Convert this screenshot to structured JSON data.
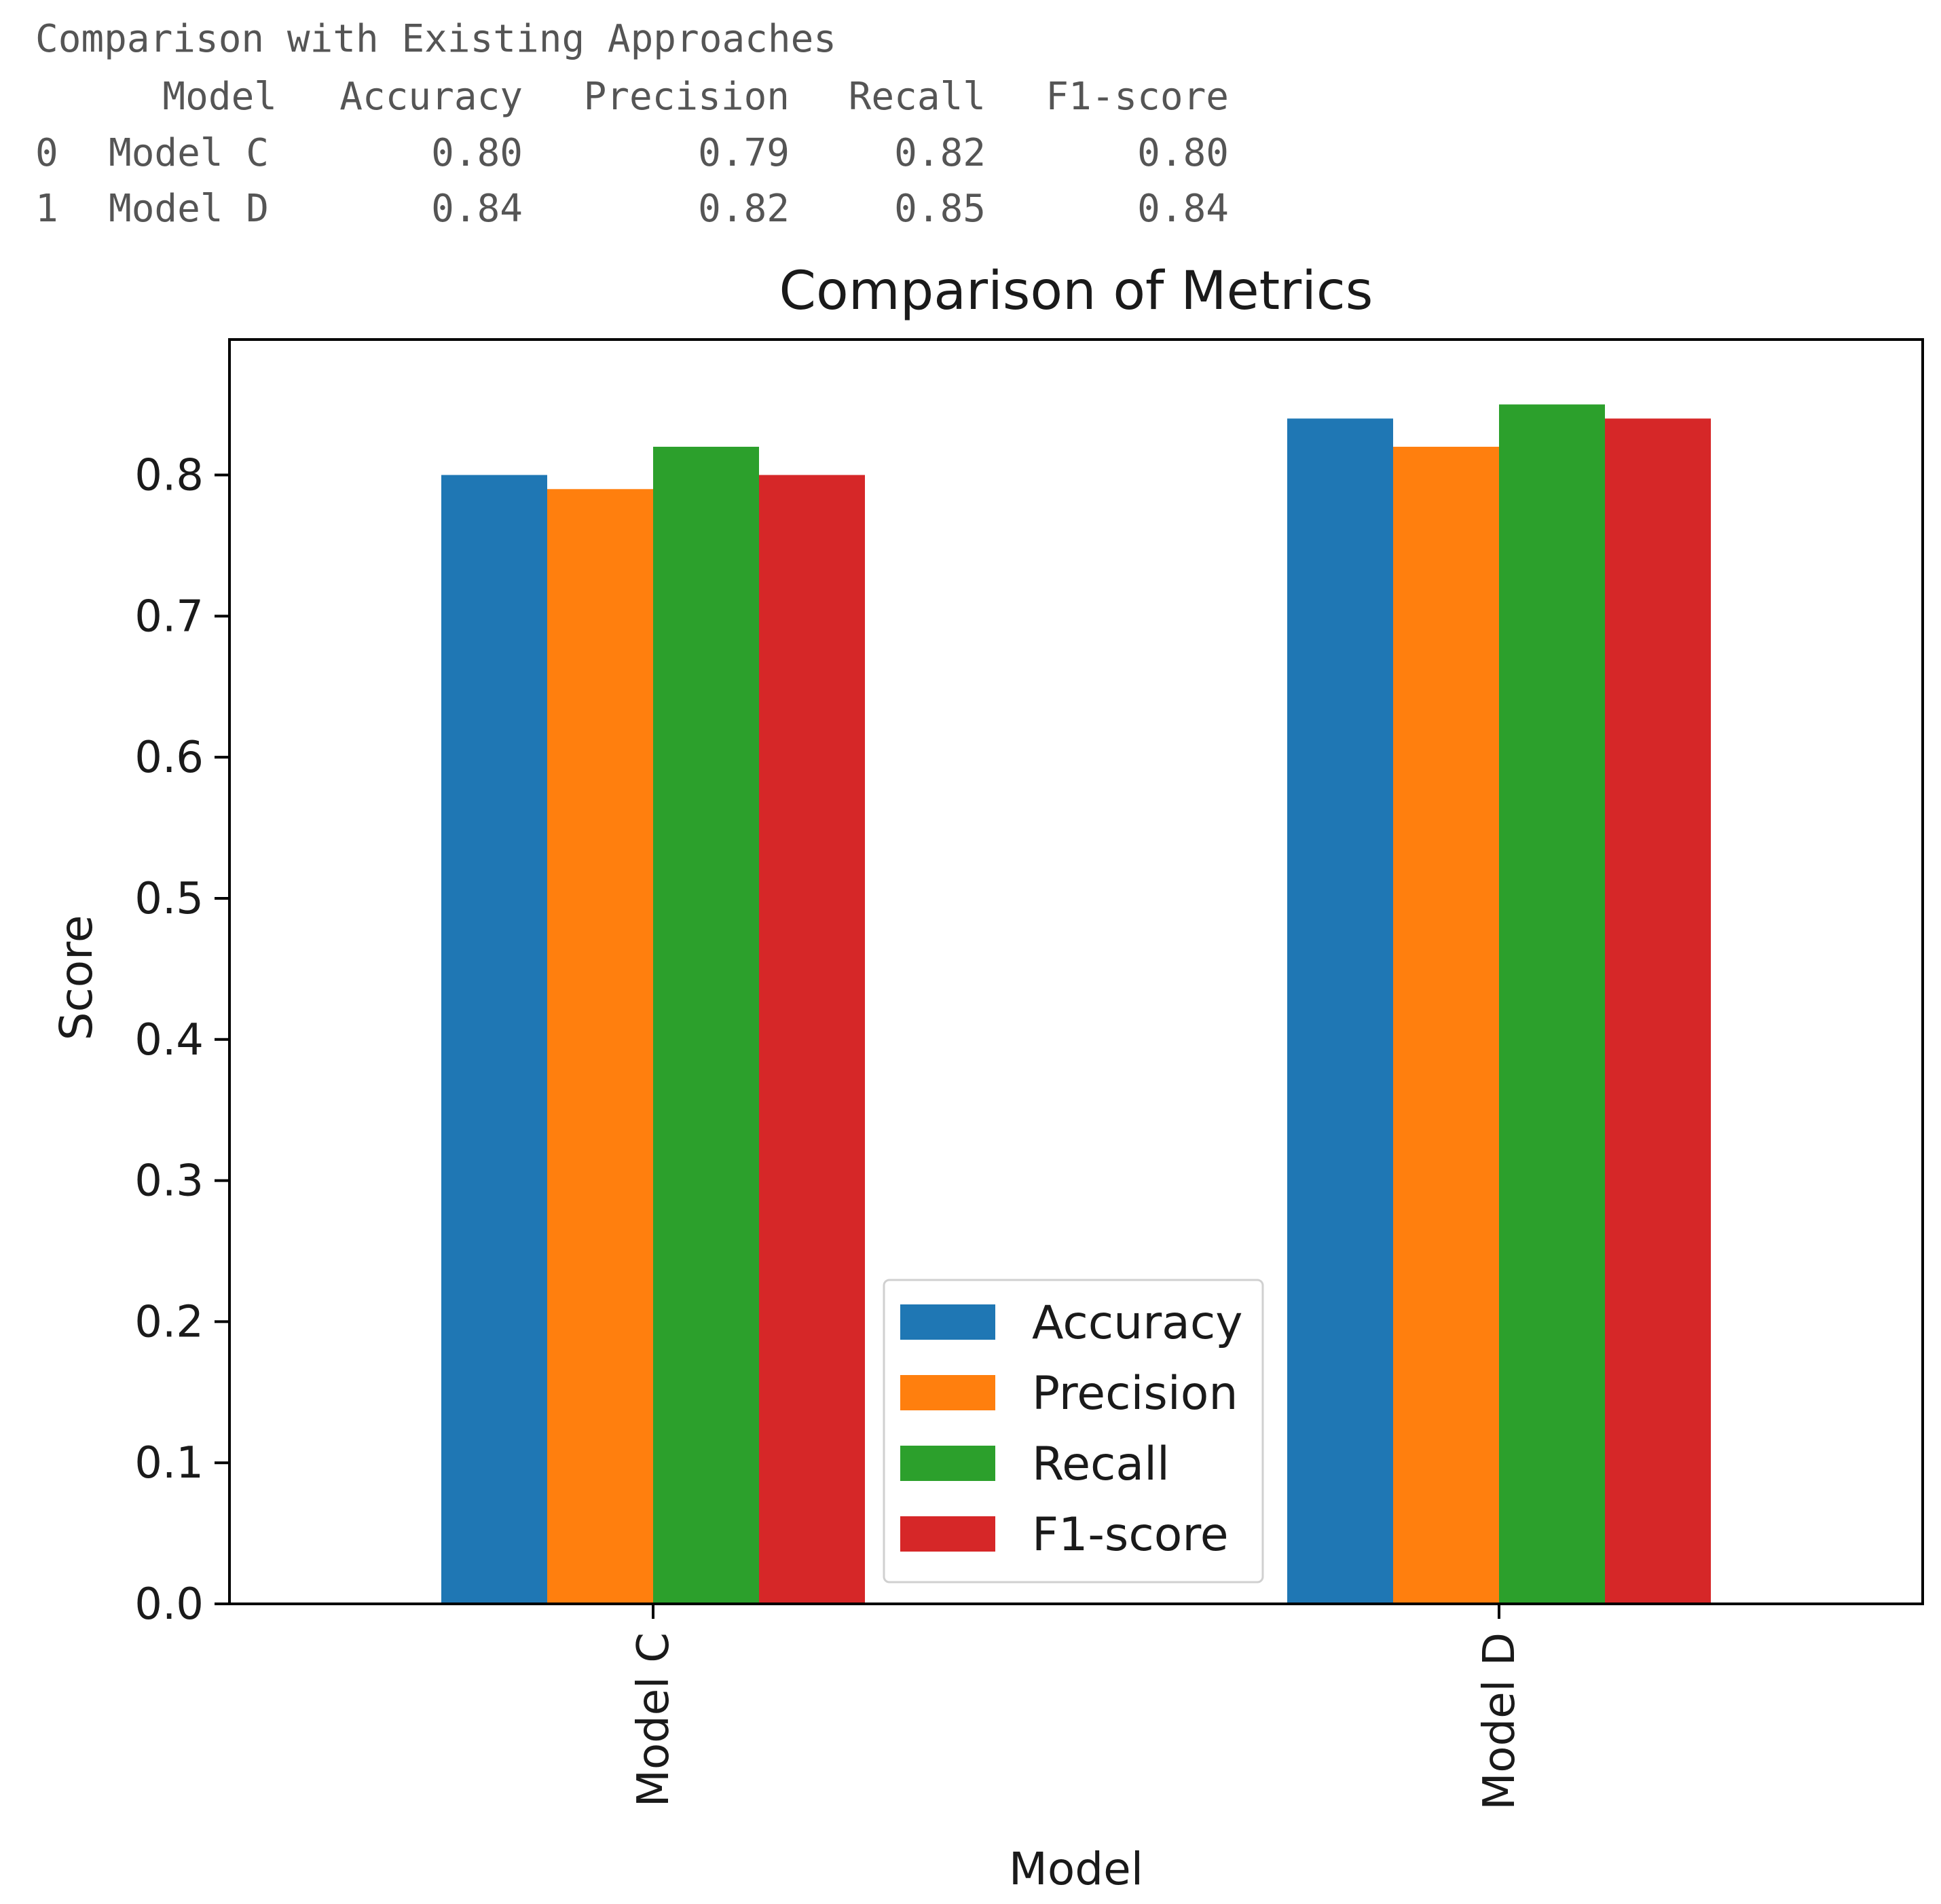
{
  "console": {
    "title": "Comparison with Existing Approaches",
    "table": {
      "columns": [
        "Model",
        "Accuracy",
        "Precision",
        "Recall",
        "F1-score"
      ],
      "rows": [
        {
          "index": "0",
          "cells": [
            "Model C",
            "0.80",
            "0.79",
            "0.82",
            "0.80"
          ]
        },
        {
          "index": "1",
          "cells": [
            "Model D",
            "0.84",
            "0.82",
            "0.85",
            "0.84"
          ]
        }
      ]
    }
  },
  "chart_data": {
    "type": "bar",
    "title": "Comparison of Metrics",
    "xlabel": "Model",
    "ylabel": "Score",
    "categories": [
      "Model C",
      "Model D"
    ],
    "series": [
      {
        "name": "Accuracy",
        "values": [
          0.8,
          0.84
        ],
        "color": "#1f77b4"
      },
      {
        "name": "Precision",
        "values": [
          0.79,
          0.82
        ],
        "color": "#ff7f0e"
      },
      {
        "name": "Recall",
        "values": [
          0.82,
          0.85
        ],
        "color": "#2ca02c"
      },
      {
        "name": "F1-score",
        "values": [
          0.8,
          0.84
        ],
        "color": "#d62728"
      }
    ],
    "ylim": [
      0,
      0.896
    ],
    "yticks": [
      "0.0",
      "0.1",
      "0.2",
      "0.3",
      "0.4",
      "0.5",
      "0.6",
      "0.7",
      "0.8"
    ],
    "grid": false,
    "legend_position": "lower center",
    "xtick_rotation": "vertical"
  }
}
